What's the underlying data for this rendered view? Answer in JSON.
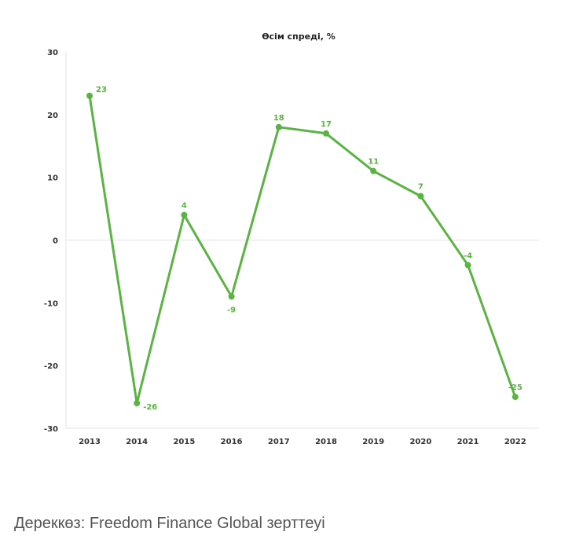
{
  "chart_data": {
    "type": "line",
    "title": "Өсім спреді, %",
    "xlabel": "",
    "ylabel": "",
    "categories": [
      "2013",
      "2014",
      "2015",
      "2016",
      "2017",
      "2018",
      "2019",
      "2020",
      "2021",
      "2022"
    ],
    "series": [
      {
        "values": [
          23,
          -26,
          4,
          -9,
          18,
          17,
          11,
          7,
          -4,
          -25
        ],
        "color": "#5bb344"
      }
    ],
    "ylim": [
      -30,
      30
    ],
    "yticks": [
      30,
      20,
      10,
      0,
      -10,
      -20,
      -30
    ],
    "data_labels": [
      "23",
      "-26",
      "4",
      "-9",
      "18",
      "17",
      "11",
      "7",
      "-4",
      "-25"
    ],
    "grid": false,
    "zero_line": true,
    "legend": "none"
  },
  "footer": {
    "source": "Дереккөз: Freedom Finance Global зерттеуі"
  }
}
